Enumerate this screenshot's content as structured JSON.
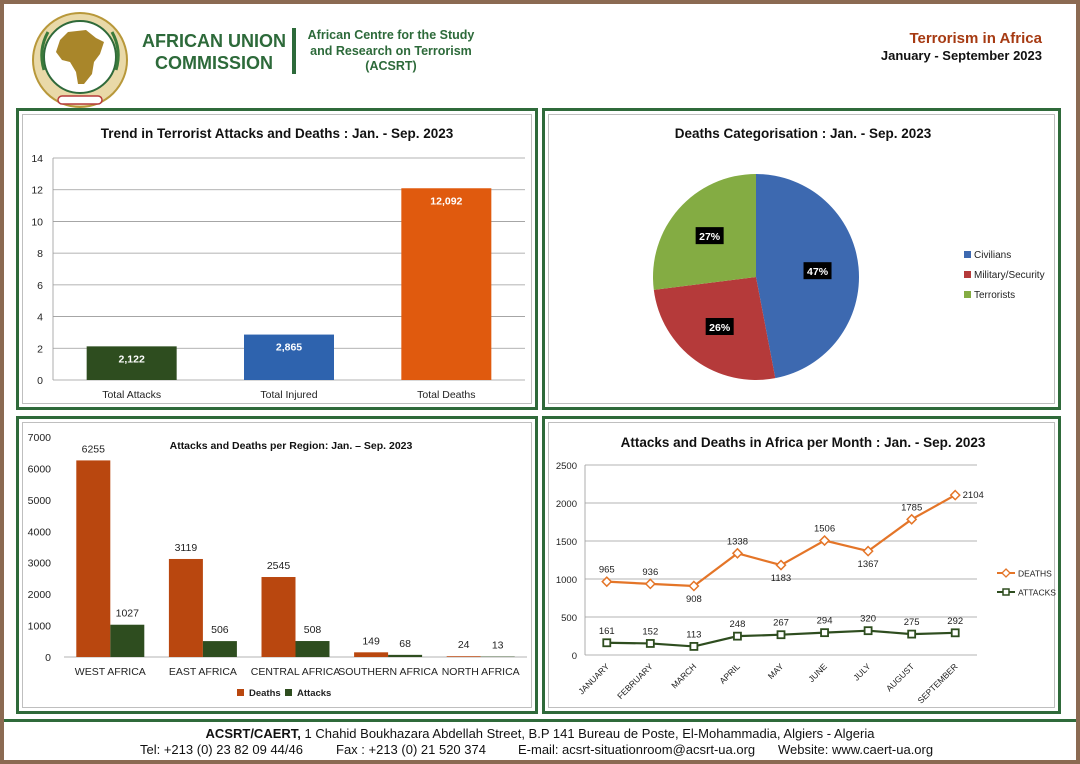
{
  "header": {
    "org_name_line1": "AFRICAN UNION",
    "org_name_line2": "COMMISSION",
    "centre_line1": "African Centre for the Study",
    "centre_line2": "and Research on Terrorism",
    "centre_line3": "(ACSRT)",
    "report_title": "Terrorism in Africa",
    "report_period": "January - September 2023"
  },
  "colors": {
    "brand_green": "#2f6a3a",
    "attacks": "#2e4d1f",
    "injured": "#2e63ae",
    "deaths": "#e05a0e",
    "region_deaths": "#b9470f",
    "pie_civilians": "#3d69b0",
    "pie_military": "#b53a3a",
    "pie_terrorists": "#84ac43",
    "line_deaths": "#e47528",
    "line_attacks": "#2e4d1f"
  },
  "chart_data": [
    {
      "type": "bar",
      "title": "Trend in Terrorist Attacks and Deaths : Jan. - Sep. 2023",
      "categories": [
        "Total Attacks",
        "Total Injured",
        "Total Deaths"
      ],
      "values": [
        2.122,
        2.865,
        12.092
      ],
      "value_labels": [
        "2,122",
        "2,865",
        "12,092"
      ],
      "ylim": [
        0,
        14
      ],
      "yticks": [
        "0",
        "2",
        "4",
        "6",
        "8",
        "10",
        "12",
        "14"
      ],
      "grid": true,
      "bar_colors": [
        "#2e4d1f",
        "#2e63ae",
        "#e05a0e"
      ]
    },
    {
      "type": "pie",
      "title": "Deaths Categorisation : Jan. - Sep. 2023",
      "categories": [
        "Civilians",
        "Military/Security",
        "Terrorists"
      ],
      "values": [
        47,
        26,
        27
      ],
      "value_labels": [
        "47%",
        "26%",
        "27%"
      ],
      "legend": "right",
      "colors": [
        "#3d69b0",
        "#b53a3a",
        "#84ac43"
      ]
    },
    {
      "type": "bar",
      "title": "Attacks and Deaths per Region: Jan. – Sep. 2023",
      "categories": [
        "WEST AFRICA",
        "EAST AFRICA",
        "CENTRAL AFRICA",
        "SOUTHERN AFRICA",
        "NORTH AFRICA"
      ],
      "series": [
        {
          "name": "Deaths",
          "values": [
            6255,
            3119,
            2545,
            149,
            24
          ],
          "color": "#b9470f"
        },
        {
          "name": "Attacks",
          "values": [
            1027,
            506,
            508,
            68,
            13
          ],
          "color": "#2e4d1f"
        }
      ],
      "ylim": [
        0,
        7000
      ],
      "yticks": [
        "0",
        "1000",
        "2000",
        "3000",
        "4000",
        "5000",
        "6000",
        "7000"
      ],
      "grid": false,
      "legend": "bottom"
    },
    {
      "type": "line",
      "title": "Attacks and Deaths in Africa per Month : Jan. - Sep. 2023",
      "categories": [
        "JANUARY",
        "FEBRUARY",
        "MARCH",
        "APRIL",
        "MAY",
        "JUNE",
        "JULY",
        "AUGUST",
        "SEPTEMBER"
      ],
      "series": [
        {
          "name": "DEATHS",
          "values": [
            965,
            936,
            908,
            1338,
            1183,
            1506,
            1367,
            1785,
            2104
          ],
          "color": "#e47528",
          "marker": "diamond"
        },
        {
          "name": "ATTACKS",
          "values": [
            161,
            152,
            113,
            248,
            267,
            294,
            320,
            275,
            292
          ],
          "color": "#2e4d1f",
          "marker": "square"
        }
      ],
      "ylim": [
        0,
        2500
      ],
      "yticks": [
        "0",
        "500",
        "1000",
        "1500",
        "2000",
        "2500"
      ],
      "grid": true,
      "legend": "right"
    }
  ],
  "footer": {
    "address_bold": "ACSRT/CAERT,",
    "address_rest": " 1 Chahid Boukhazara Abdellah Street, B.P 141 Bureau de Poste, El-Mohammadia, Algiers - Algeria",
    "tel": "Tel: +213 (0) 23 82 09 44/46",
    "fax": "Fax : +213 (0) 21 520 374",
    "email": "E-mail: acsrt-situationroom@acsrt-ua.org",
    "website": "Website: www.caert-ua.org"
  }
}
